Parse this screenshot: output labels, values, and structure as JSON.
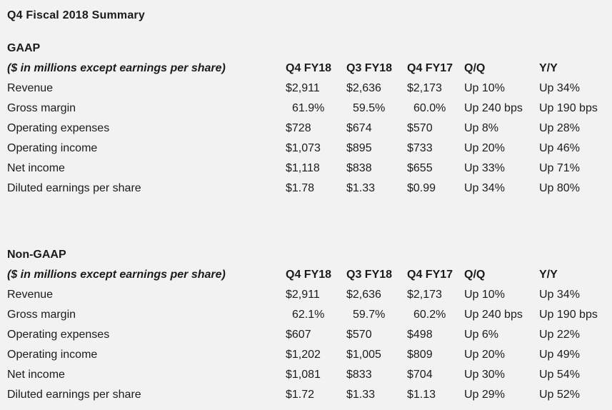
{
  "page": {
    "title": "Q4 Fiscal 2018 Summary",
    "background_color": "#f2f2f2",
    "text_color": "#1b1b1b"
  },
  "columns": [
    "Q4 FY18",
    "Q3 FY18",
    "Q4 FY17",
    "Q/Q",
    "Y/Y"
  ],
  "sections": [
    {
      "heading": "GAAP",
      "note": "($ in millions except earnings per share)",
      "rows": [
        {
          "label": "Revenue",
          "values": [
            "$2,911",
            "$2,636",
            "$2,173",
            "Up 10%",
            "Up 34%"
          ],
          "indent": false
        },
        {
          "label": "Gross margin",
          "values": [
            "61.9%",
            "59.5%",
            "60.0%",
            "Up 240 bps",
            "Up 190 bps"
          ],
          "indent": true
        },
        {
          "label": "Operating expenses",
          "values": [
            "$728",
            "$674",
            "$570",
            "Up 8%",
            "Up 28%"
          ],
          "indent": false
        },
        {
          "label": "Operating income",
          "values": [
            "$1,073",
            "$895",
            "$733",
            "Up 20%",
            "Up 46%"
          ],
          "indent": false
        },
        {
          "label": "Net income",
          "values": [
            "$1,118",
            "$838",
            "$655",
            "Up 33%",
            "Up 71%"
          ],
          "indent": false
        },
        {
          "label": "Diluted earnings per share",
          "values": [
            "$1.78",
            "$1.33",
            "$0.99",
            "Up 34%",
            "Up 80%"
          ],
          "indent": false
        }
      ]
    },
    {
      "heading": "Non-GAAP",
      "note": "($ in millions except earnings per share)",
      "rows": [
        {
          "label": "Revenue",
          "values": [
            "$2,911",
            "$2,636",
            "$2,173",
            "Up 10%",
            "Up 34%"
          ],
          "indent": false
        },
        {
          "label": "Gross margin",
          "values": [
            "62.1%",
            "59.7%",
            "60.2%",
            "Up 240 bps",
            "Up 190 bps"
          ],
          "indent": true
        },
        {
          "label": "Operating expenses",
          "values": [
            "$607",
            "$570",
            "$498",
            "Up 6%",
            "Up 22%"
          ],
          "indent": false
        },
        {
          "label": "Operating income",
          "values": [
            "$1,202",
            "$1,005",
            "$809",
            "Up 20%",
            "Up 49%"
          ],
          "indent": false
        },
        {
          "label": "Net income",
          "values": [
            "$1,081",
            "$833",
            "$704",
            "Up 30%",
            "Up 54%"
          ],
          "indent": false
        },
        {
          "label": "Diluted earnings per share",
          "values": [
            "$1.72",
            "$1.33",
            "$1.13",
            "Up 29%",
            "Up 52%"
          ],
          "indent": false
        }
      ]
    }
  ]
}
